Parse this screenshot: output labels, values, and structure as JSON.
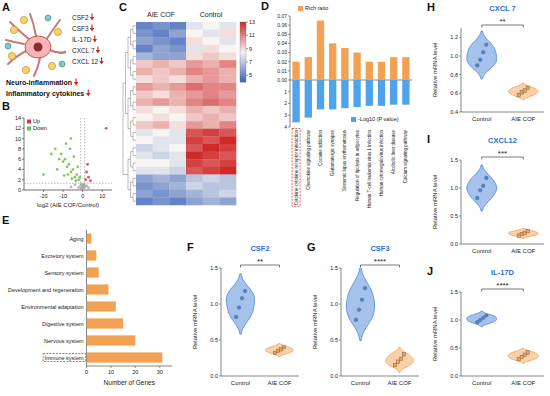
{
  "diagram": {
    "panel": "A",
    "markers": [
      "CSF2",
      "CSF3",
      "IL-17D",
      "CXCL 7",
      "CXCL 12"
    ],
    "outcomes": [
      "Neuro-inflammation",
      "Inflammatory cytokines"
    ]
  },
  "chart_data": [
    {
      "type": "scatter",
      "panel": "B",
      "x_label": "log2 (AIE COF/Control)",
      "xlim": [
        -30,
        15
      ],
      "xticks": [
        -20,
        -10,
        0,
        10
      ],
      "ylim": [
        0,
        14
      ],
      "yticks": [
        0,
        2,
        4,
        6,
        8,
        10,
        12,
        14
      ],
      "legend": "top-left",
      "thresholds_y": [
        1.3
      ],
      "thresholds_x": [
        -1,
        1
      ],
      "series": [
        {
          "name": "Up",
          "color": "#d8315b",
          "x": [
            1.5,
            2,
            3,
            4,
            2.5,
            12
          ],
          "values": [
            2,
            3.5,
            2.5,
            1.8,
            5,
            12
          ]
        },
        {
          "name": "Down",
          "color": "#6cc04a",
          "x": [
            -2,
            -3,
            -4,
            -5,
            -6,
            -7,
            -8,
            -9,
            -10,
            -11,
            -12,
            -14,
            -16,
            -3.5,
            -5.5,
            -7.5,
            -9.5,
            -2.5,
            -4.5,
            -6.5,
            -8.5,
            -13,
            -1.5,
            -20,
            -6
          ],
          "values": [
            2,
            3,
            2.5,
            4,
            3.5,
            5,
            4.5,
            6,
            5.5,
            7,
            6,
            8,
            7,
            1.8,
            2.2,
            3,
            2.8,
            4.5,
            6.5,
            8,
            9,
            4,
            2.5,
            3,
            10
          ]
        },
        {
          "color": "#a9a9a9",
          "x": [
            -0.5,
            0.3,
            0.8,
            -0.8,
            0.1,
            -0.2,
            0.5,
            -1,
            1,
            -0.6,
            0.6,
            -0.3,
            0.2,
            -2,
            2,
            -4,
            3,
            -6,
            0,
            -0.1
          ],
          "values": [
            0.2,
            0.5,
            0.8,
            0.3,
            1,
            0.1,
            0.4,
            0.9,
            0.6,
            1.2,
            1.1,
            0.7,
            0.3,
            0.5,
            0.8,
            1,
            0.4,
            0.6,
            0.9,
            0.2
          ]
        }
      ]
    },
    {
      "type": "heatmap",
      "panel": "C",
      "groups": [
        "AIE COF",
        "Control"
      ],
      "colorbar_range": [
        4,
        13
      ],
      "colorbar_ticks": [
        5,
        7,
        9,
        11,
        13
      ],
      "cells": [
        [
          5,
          5.5,
          5,
          8,
          8.5,
          8
        ],
        [
          5.5,
          5,
          6,
          8.5,
          8,
          9
        ],
        [
          6,
          5.5,
          5,
          9,
          8.5,
          8
        ],
        [
          5,
          6,
          5.5,
          8,
          9,
          8.5
        ],
        [
          6.5,
          6,
          6,
          9,
          9.5,
          9
        ],
        [
          9.5,
          10,
          9.5,
          10.5,
          10,
          11
        ],
        [
          10,
          9.5,
          10,
          11,
          10.5,
          10
        ],
        [
          9,
          9.5,
          9,
          10,
          10.5,
          10
        ],
        [
          10.5,
          10,
          10.5,
          11.5,
          11,
          11
        ],
        [
          9.5,
          9,
          10,
          10.5,
          11,
          10.5
        ],
        [
          10,
          10.5,
          10,
          11,
          11.5,
          11
        ],
        [
          9,
          8.5,
          9,
          10,
          9.5,
          10
        ],
        [
          8.5,
          9,
          8.5,
          9.5,
          10,
          9.5
        ],
        [
          9.5,
          10,
          9,
          10.5,
          10,
          11
        ],
        [
          8,
          8.5,
          8,
          12,
          12.5,
          12
        ],
        [
          8.5,
          8,
          8,
          12.5,
          12,
          13
        ],
        [
          7.5,
          8,
          8.5,
          12,
          13,
          12.5
        ],
        [
          8,
          7.5,
          8,
          13,
          12.5,
          12
        ],
        [
          8.5,
          8.5,
          8,
          12.5,
          12,
          12.5
        ],
        [
          8,
          8,
          7.5,
          12,
          12.5,
          13
        ],
        [
          6,
          6.5,
          6,
          7,
          7.5,
          7
        ],
        [
          5.5,
          6,
          6.5,
          7.5,
          7,
          7
        ],
        [
          6,
          5.5,
          6,
          6.5,
          7,
          7.5
        ],
        [
          5,
          5.5,
          5,
          6,
          6.5,
          6
        ]
      ]
    },
    {
      "type": "bar",
      "panel": "D",
      "categories": [
        "Cytokine-cytokine receptor interaction",
        "Chemokine signaling pathway",
        "Cocaine addiction",
        "Glutamatergic synapse",
        "Systemic lupus erythematosus",
        "Regulation of lipolysis in adipocytes",
        "Human T-cell leukemia virus 1 infection",
        "Human cytomegalovirus infection",
        "Alcoholic liver disease",
        "Calcium signaling pathway"
      ],
      "series": [
        {
          "name": "Rich ratio",
          "color": "#f2a154",
          "values": [
            0.02,
            0.025,
            0.065,
            0.04,
            0.035,
            0.03,
            0.02,
            0.02,
            0.025,
            0.025
          ]
        },
        {
          "name": "-Log10 (P value)",
          "color": "#4ea3ea",
          "axis": "y2",
          "values": [
            3.6,
            3.2,
            2.5,
            2.5,
            2.4,
            2.3,
            2.2,
            2.2,
            2.1,
            2.1
          ]
        }
      ],
      "ylim": [
        0,
        0.07
      ],
      "yticks": [
        {
          "value": 0,
          "label": "0.00"
        },
        {
          "value": 0.01,
          "label": "0.01"
        },
        {
          "value": 0.02,
          "label": "0.02"
        },
        {
          "value": 0.03,
          "label": "0.03"
        },
        {
          "value": 0.04,
          "label": "0.04"
        },
        {
          "value": 0.05,
          "label": "0.05"
        },
        {
          "value": 0.06,
          "label": "0.06"
        },
        {
          "value": 0.07,
          "label": "0.07"
        }
      ],
      "y2lim": [
        0,
        4
      ],
      "y2ticks": [
        1,
        2,
        3,
        4
      ],
      "legend": "top-left"
    },
    {
      "type": "bar",
      "panel": "E",
      "orientation": "horizontal",
      "categories": [
        "Aging",
        "Excretory system",
        "Sensory system",
        "Development and regeneration",
        "Environmental adaptation",
        "Digestive system",
        "Nervous system",
        "Immune system"
      ],
      "values": [
        2,
        4,
        5,
        9,
        12,
        15,
        20,
        31
      ],
      "color": "#f2a154",
      "xlim": [
        0,
        35
      ],
      "xticks": [
        0,
        10,
        20,
        30
      ],
      "x_label": "Number of Genes"
    },
    {
      "type": "violin",
      "panel": "F",
      "title": "CSF2",
      "y_label": "Relative mRNA level",
      "annotation": "**",
      "ylim": [
        0,
        1.5
      ],
      "yticks": [
        {
          "value": 0,
          "label": "0.0"
        },
        0.5,
        {
          "value": 1,
          "label": "1.0"
        },
        1.5
      ],
      "series": [
        {
          "name": "Control",
          "color": "#4a86d8",
          "marker": "circle",
          "values": [
            0.82,
            0.95,
            1.08,
            1.18
          ]
        },
        {
          "name": "AIE COF",
          "color": "#f2a154",
          "marker": "square",
          "values": [
            0.32,
            0.35,
            0.37,
            0.4
          ]
        }
      ]
    },
    {
      "type": "violin",
      "panel": "G",
      "title": "CSF3",
      "y_label": "Relative mRNA level",
      "annotation": "****",
      "ylim": [
        0,
        1.5
      ],
      "yticks": [
        {
          "value": 0,
          "label": "0.0"
        },
        0.5,
        {
          "value": 1,
          "label": "1.0"
        },
        1.5
      ],
      "series": [
        {
          "name": "Control",
          "color": "#4a86d8",
          "marker": "circle",
          "values": [
            0.78,
            0.92,
            1.06,
            1.22
          ]
        },
        {
          "name": "AIE COF",
          "color": "#f2a154",
          "marker": "square",
          "values": [
            0.15,
            0.2,
            0.24,
            0.3
          ]
        }
      ]
    },
    {
      "type": "violin",
      "panel": "H",
      "title": "CXCL 7",
      "y_label": "Relative mRNA level",
      "annotation": "**",
      "ylim": [
        0.4,
        1.3
      ],
      "yticks": [
        0.4,
        0.6,
        0.8,
        {
          "value": 1,
          "label": "1.0"
        },
        1.2
      ],
      "series": [
        {
          "name": "Control",
          "color": "#4a86d8",
          "marker": "circle",
          "values": [
            0.9,
            0.96,
            1.04,
            1.12
          ]
        },
        {
          "name": "AIE COF",
          "color": "#f2a154",
          "marker": "square",
          "values": [
            0.58,
            0.61,
            0.63,
            0.66
          ]
        }
      ]
    },
    {
      "type": "violin",
      "panel": "I",
      "title": "CXCL12",
      "y_label": "Relative mRNA level",
      "annotation": "***",
      "ylim": [
        0,
        1.5
      ],
      "yticks": [
        {
          "value": 0,
          "label": "0.0"
        },
        0.5,
        {
          "value": 1,
          "label": "1.0"
        },
        1.5
      ],
      "series": [
        {
          "name": "Control",
          "color": "#4a86d8",
          "marker": "circle",
          "values": [
            0.82,
            0.96,
            1.04,
            1.18
          ]
        },
        {
          "name": "AIE COF",
          "color": "#f2a154",
          "marker": "square",
          "values": [
            0.15,
            0.18,
            0.2,
            0.23
          ]
        }
      ]
    },
    {
      "type": "violin",
      "panel": "J",
      "title": "IL-17D",
      "y_label": "Relative mRNA level",
      "annotation": "****",
      "ylim": [
        0,
        1.5
      ],
      "yticks": [
        {
          "value": 0,
          "label": "0.0"
        },
        0.5,
        {
          "value": 1,
          "label": "1.0"
        },
        1.5
      ],
      "series": [
        {
          "name": "Control",
          "color": "#4a86d8",
          "marker": "circle",
          "values": [
            0.96,
            1,
            1.04,
            1.08
          ]
        },
        {
          "name": "AIE COF",
          "color": "#f2a154",
          "marker": "square",
          "values": [
            0.3,
            0.34,
            0.38,
            0.42
          ]
        }
      ]
    }
  ]
}
